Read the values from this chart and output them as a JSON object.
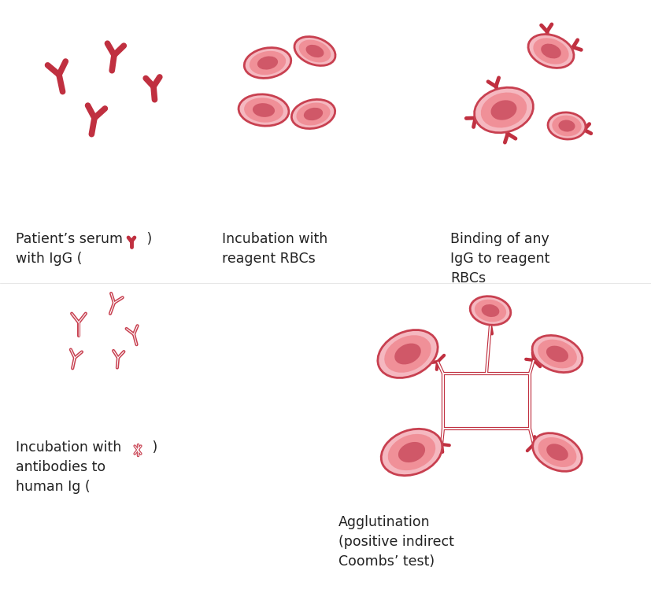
{
  "bg_color": "#ffffff",
  "rbc_outer_color": "#c84050",
  "rbc_light_color": "#f5b8c0",
  "rbc_mid_color": "#f09098",
  "rbc_dark_color": "#d05868",
  "ab_solid_color": "#c03040",
  "ab_outline_color": "#c84050",
  "text_color": "#222222",
  "label1": "Patient’s serum\nwith IgG (",
  "label1_end": " )",
  "label2": "Incubation with\nreagent RBCs",
  "label3": "Binding of any\nIgG to reagent\nRBCs",
  "label4": "Incubation with\nantibodies to\nhuman Ig (",
  "label4_end": " )",
  "label5": "Agglutination\n(positive indirect\nCoombs’ test)",
  "font_size": 12.5
}
